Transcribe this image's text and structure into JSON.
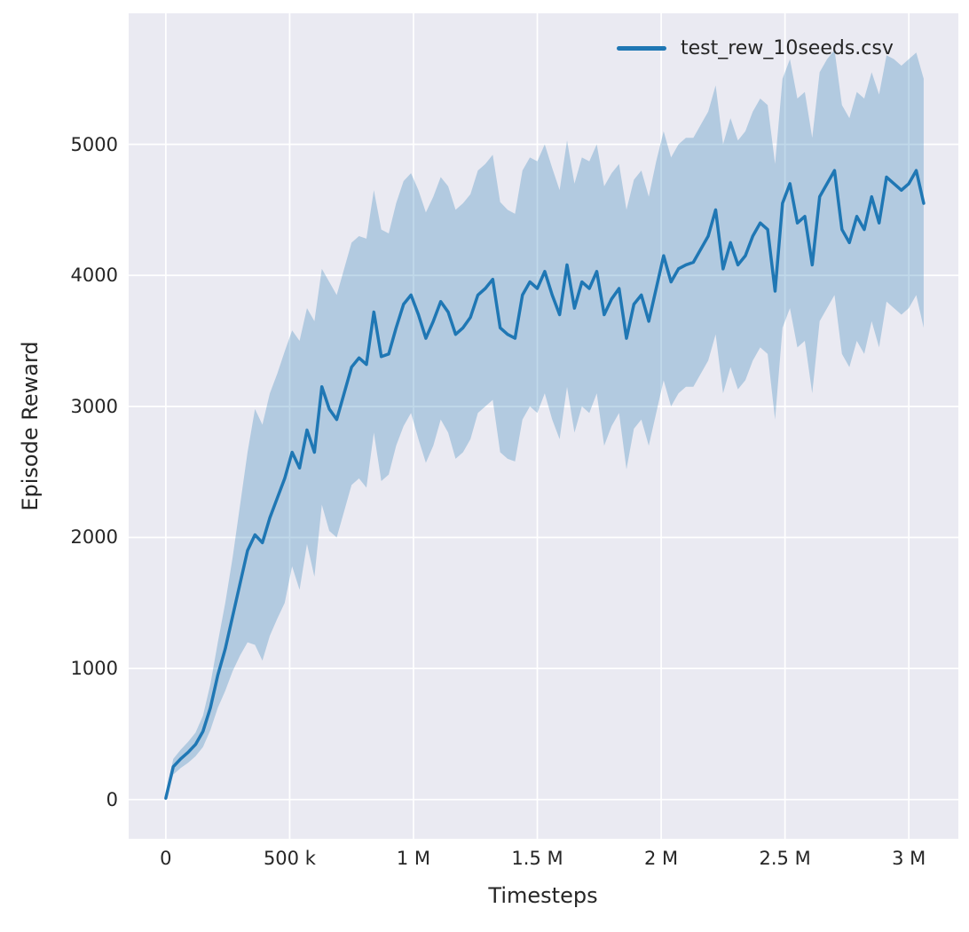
{
  "colors": {
    "line": "#1f77b4",
    "band": "#1f77b4",
    "band_opacity": 0.28,
    "plot_background": "#eaeaf2",
    "grid": "#ffffff",
    "text": "#262626"
  },
  "chart_data": {
    "type": "line",
    "title": "",
    "xlabel": "Timesteps",
    "ylabel": "Episode Reward",
    "grid": true,
    "legend_position": "upper right",
    "legend": [
      {
        "label": "test_rew_10seeds.csv",
        "color": "#1f77b4"
      }
    ],
    "xlim": [
      -150000,
      3200000
    ],
    "ylim": [
      -300,
      6000
    ],
    "xticks": [
      {
        "value": 0,
        "label": "0"
      },
      {
        "value": 500000,
        "label": "500 k"
      },
      {
        "value": 1000000,
        "label": "1 M"
      },
      {
        "value": 1500000,
        "label": "1.5 M"
      },
      {
        "value": 2000000,
        "label": "2 M"
      },
      {
        "value": 2500000,
        "label": "2.5 M"
      },
      {
        "value": 3000000,
        "label": "3 M"
      }
    ],
    "yticks": [
      {
        "value": 0,
        "label": "0"
      },
      {
        "value": 1000,
        "label": "1000"
      },
      {
        "value": 2000,
        "label": "2000"
      },
      {
        "value": 3000,
        "label": "3000"
      },
      {
        "value": 4000,
        "label": "4000"
      },
      {
        "value": 5000,
        "label": "5000"
      }
    ],
    "x": [
      0,
      30000,
      60000,
      90000,
      120000,
      150000,
      180000,
      210000,
      240000,
      270000,
      300000,
      330000,
      360000,
      390000,
      420000,
      450000,
      480000,
      510000,
      540000,
      570000,
      600000,
      630000,
      660000,
      690000,
      720000,
      750000,
      780000,
      810000,
      840000,
      870000,
      900000,
      930000,
      960000,
      990000,
      1020000,
      1050000,
      1080000,
      1110000,
      1140000,
      1170000,
      1200000,
      1230000,
      1260000,
      1290000,
      1320000,
      1350000,
      1380000,
      1410000,
      1440000,
      1470000,
      1500000,
      1530000,
      1560000,
      1590000,
      1620000,
      1650000,
      1680000,
      1710000,
      1740000,
      1770000,
      1800000,
      1830000,
      1860000,
      1890000,
      1920000,
      1950000,
      1980000,
      2010000,
      2040000,
      2070000,
      2100000,
      2130000,
      2160000,
      2190000,
      2220000,
      2250000,
      2280000,
      2310000,
      2340000,
      2370000,
      2400000,
      2430000,
      2460000,
      2490000,
      2520000,
      2550000,
      2580000,
      2610000,
      2640000,
      2670000,
      2700000,
      2730000,
      2760000,
      2790000,
      2820000,
      2850000,
      2880000,
      2910000,
      2940000,
      2970000,
      3000000,
      3030000,
      3060000
    ],
    "series": [
      {
        "name": "test_rew_10seeds.csv",
        "color": "#1f77b4",
        "linewidth": 3.5,
        "values": [
          10,
          250,
          310,
          360,
          420,
          520,
          700,
          950,
          1150,
          1400,
          1650,
          1900,
          2020,
          1960,
          2150,
          2300,
          2450,
          2650,
          2530,
          2820,
          2650,
          3150,
          2980,
          2900,
          3100,
          3300,
          3370,
          3320,
          3720,
          3380,
          3400,
          3600,
          3780,
          3850,
          3700,
          3520,
          3650,
          3800,
          3720,
          3550,
          3600,
          3680,
          3850,
          3900,
          3970,
          3600,
          3550,
          3520,
          3850,
          3950,
          3900,
          4030,
          3850,
          3700,
          4080,
          3750,
          3950,
          3900,
          4030,
          3700,
          3820,
          3900,
          3520,
          3780,
          3850,
          3650,
          3900,
          4150,
          3950,
          4050,
          4080,
          4100,
          4200,
          4300,
          4500,
          4050,
          4250,
          4080,
          4150,
          4300,
          4400,
          4350,
          3880,
          4550,
          4700,
          4400,
          4450,
          4080,
          4600,
          4700,
          4800,
          4350,
          4250,
          4450,
          4350,
          4600,
          4400,
          4750,
          4700,
          4650,
          4700,
          4800,
          4550
        ],
        "band_lower": [
          0,
          190,
          240,
          280,
          330,
          400,
          530,
          700,
          830,
          980,
          1100,
          1200,
          1180,
          1060,
          1250,
          1380,
          1500,
          1780,
          1600,
          1950,
          1700,
          2250,
          2050,
          2000,
          2200,
          2400,
          2450,
          2380,
          2800,
          2430,
          2480,
          2700,
          2850,
          2950,
          2750,
          2570,
          2700,
          2900,
          2800,
          2600,
          2650,
          2750,
          2950,
          3000,
          3050,
          2650,
          2600,
          2580,
          2900,
          3000,
          2950,
          3100,
          2900,
          2750,
          3150,
          2800,
          3000,
          2950,
          3100,
          2700,
          2850,
          2950,
          2520,
          2830,
          2900,
          2700,
          2950,
          3200,
          3000,
          3100,
          3150,
          3150,
          3250,
          3350,
          3550,
          3100,
          3300,
          3130,
          3200,
          3350,
          3450,
          3400,
          2900,
          3600,
          3750,
          3450,
          3500,
          3100,
          3650,
          3750,
          3850,
          3400,
          3300,
          3500,
          3400,
          3650,
          3450,
          3800,
          3750,
          3700,
          3750,
          3850,
          3600
        ],
        "band_upper": [
          30,
          310,
          380,
          440,
          510,
          640,
          880,
          1200,
          1500,
          1850,
          2250,
          2650,
          2980,
          2860,
          3100,
          3250,
          3420,
          3580,
          3500,
          3750,
          3650,
          4050,
          3950,
          3850,
          4050,
          4250,
          4300,
          4280,
          4650,
          4350,
          4320,
          4550,
          4720,
          4780,
          4650,
          4480,
          4600,
          4750,
          4680,
          4500,
          4550,
          4620,
          4800,
          4850,
          4920,
          4560,
          4500,
          4470,
          4800,
          4900,
          4870,
          5000,
          4820,
          4650,
          5030,
          4700,
          4900,
          4870,
          5000,
          4680,
          4780,
          4850,
          4500,
          4730,
          4800,
          4600,
          4870,
          5100,
          4900,
          5000,
          5050,
          5050,
          5150,
          5250,
          5450,
          5000,
          5200,
          5030,
          5100,
          5250,
          5350,
          5300,
          4850,
          5500,
          5650,
          5350,
          5400,
          5050,
          5550,
          5650,
          5720,
          5300,
          5200,
          5400,
          5350,
          5550,
          5380,
          5680,
          5650,
          5600,
          5650,
          5700,
          5500
        ]
      }
    ]
  }
}
